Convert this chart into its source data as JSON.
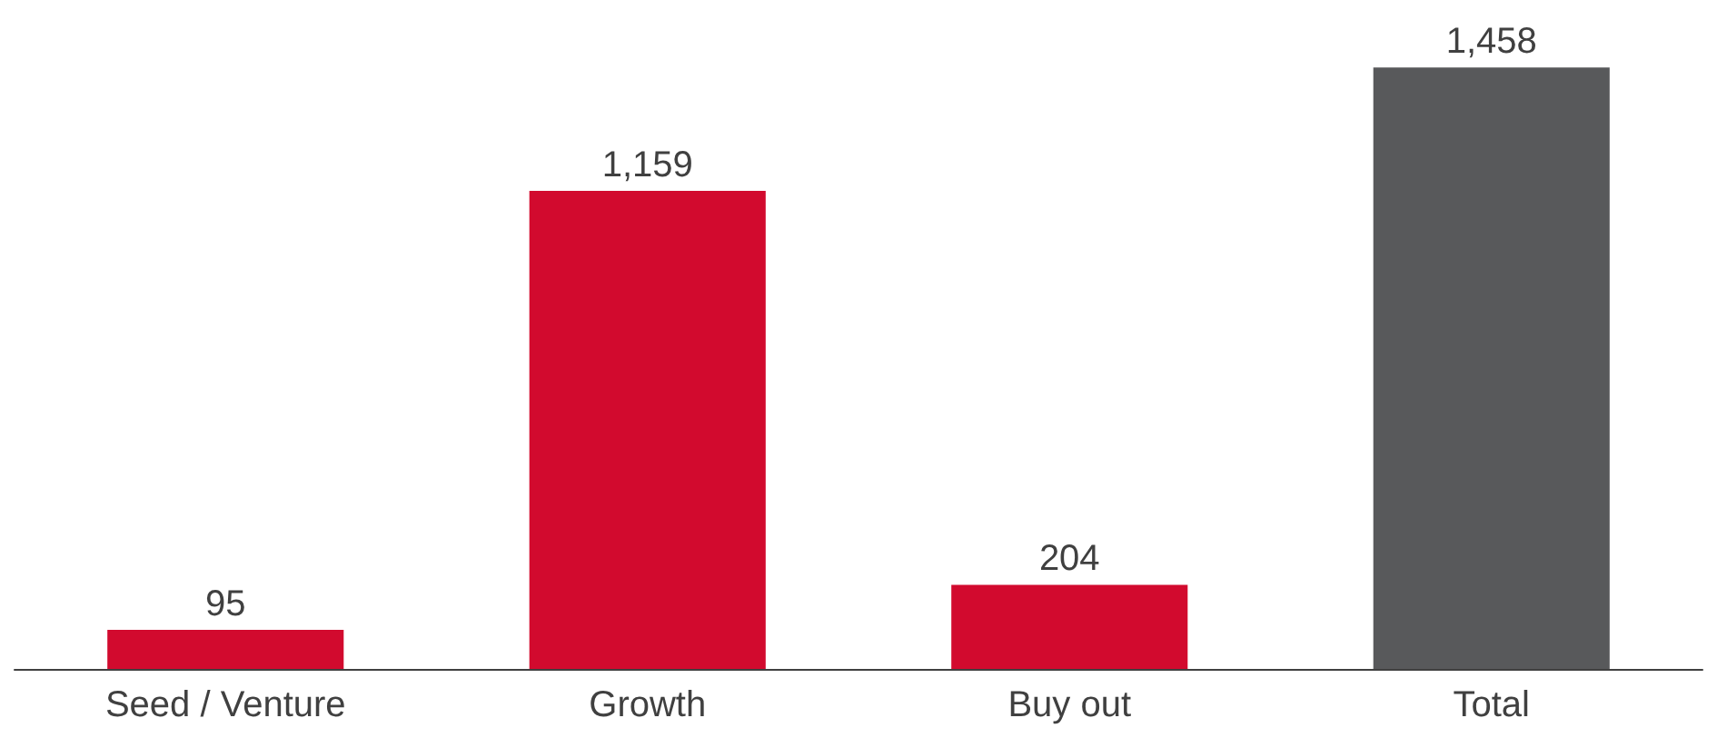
{
  "chart_data": {
    "type": "bar",
    "categories": [
      "Seed / Venture",
      "Growth",
      "Buy out",
      "Total"
    ],
    "values": [
      95,
      1159,
      204,
      1458
    ],
    "value_labels": [
      "95",
      "1,159",
      "204",
      "1,458"
    ],
    "colors": [
      "#d20a2e",
      "#d20a2e",
      "#d20a2e",
      "#58595b"
    ]
  }
}
